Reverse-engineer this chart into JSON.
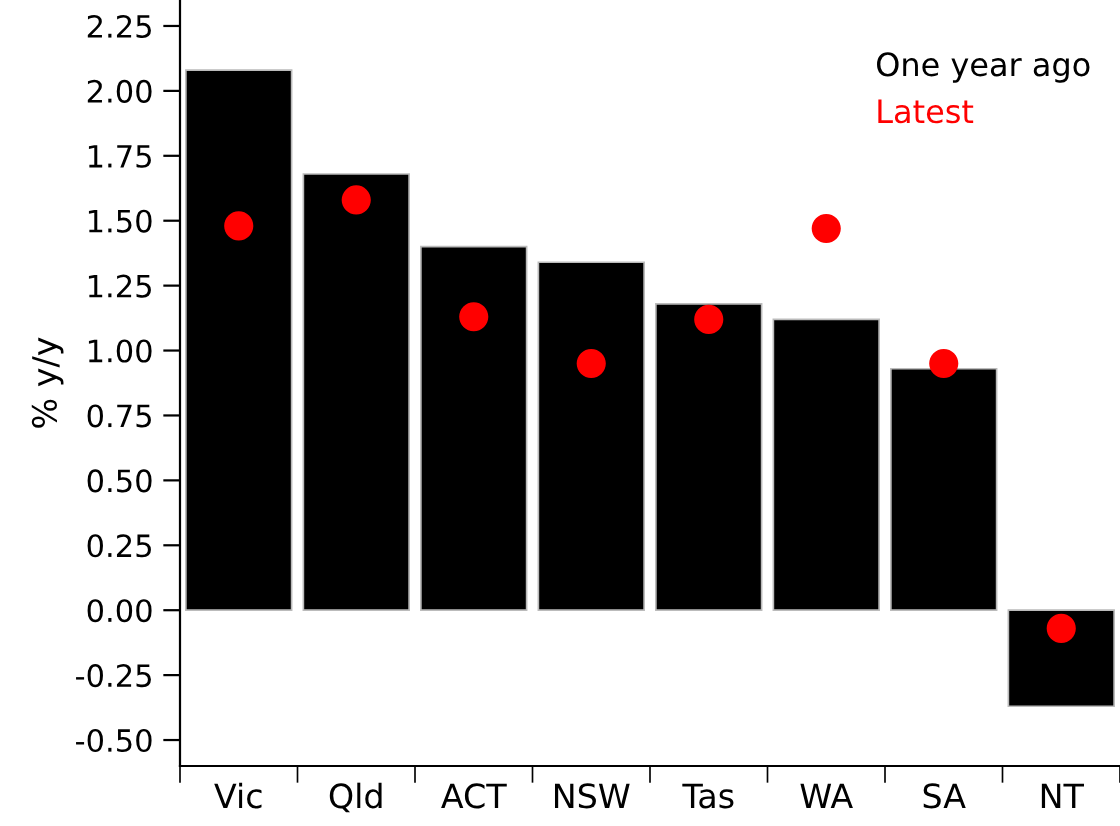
{
  "chart_data": {
    "type": "bar",
    "ylabel": "% y/y",
    "categories": [
      "Vic",
      "Qld",
      "ACT",
      "NSW",
      "Tas",
      "WA",
      "SA",
      "NT"
    ],
    "series": [
      {
        "name": "One year ago",
        "color": "#000000",
        "values": [
          2.08,
          1.68,
          1.4,
          1.34,
          1.18,
          1.12,
          0.93,
          -0.37
        ]
      },
      {
        "name": "Latest",
        "type": "scatter",
        "color": "#ff0000",
        "marker": "circle",
        "values": [
          1.48,
          1.58,
          1.13,
          0.95,
          1.12,
          1.47,
          0.95,
          -0.07
        ]
      }
    ],
    "ylim": [
      -0.6,
      2.35
    ],
    "yticks": [
      {
        "value": -0.5,
        "label": "-0.50"
      },
      {
        "value": -0.25,
        "label": "-0.25"
      },
      {
        "value": 0,
        "label": "0.00"
      },
      {
        "value": 0.25,
        "label": "0.25"
      },
      {
        "value": 0.5,
        "label": "0.50"
      },
      {
        "value": 0.75,
        "label": "0.75"
      },
      {
        "value": 1,
        "label": "1.00"
      },
      {
        "value": 1.25,
        "label": "1.25"
      },
      {
        "value": 1.5,
        "label": "1.50"
      },
      {
        "value": 1.75,
        "label": "1.75"
      },
      {
        "value": 2,
        "label": "2.00"
      },
      {
        "value": 2.25,
        "label": "2.25"
      }
    ],
    "grid": false,
    "legend": "top right"
  }
}
